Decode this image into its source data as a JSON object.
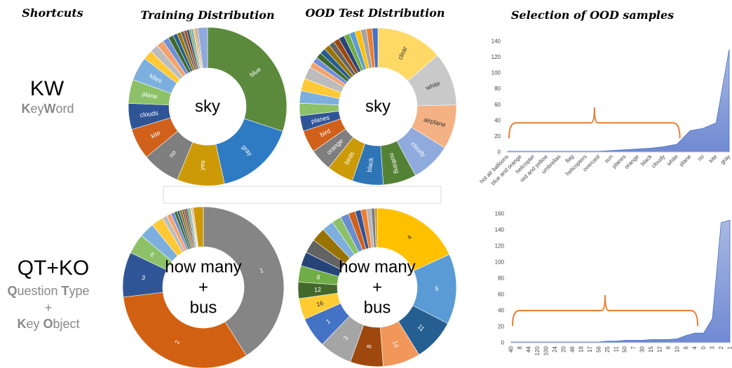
{
  "headers": {
    "shortcuts": "Shortcuts",
    "training": "Training Distribution",
    "ood_test": "OOD Test Distribution",
    "selection": "Selection of OOD samples"
  },
  "rows": [
    {
      "abbr": "KW",
      "full_parts": [
        [
          "K",
          true
        ],
        [
          "ey",
          false
        ],
        [
          "W",
          true
        ],
        [
          "ord",
          false
        ]
      ]
    },
    {
      "abbr": "QT+KO",
      "line1_parts": [
        [
          "Q",
          true
        ],
        [
          "uestion ",
          false
        ],
        [
          "T",
          true
        ],
        [
          "ype",
          false
        ]
      ],
      "plus": "+",
      "line2_parts": [
        [
          "K",
          true
        ],
        [
          "ey ",
          false
        ],
        [
          "O",
          true
        ],
        [
          "bject",
          false
        ]
      ]
    }
  ],
  "chart_data": [
    {
      "type": "pie",
      "subtype": "donut",
      "panel": "Training Distribution",
      "center_label": [
        "sky"
      ],
      "slices": [
        {
          "label": "blue",
          "value": 31,
          "color": "#5B8A3C"
        },
        {
          "label": "gray",
          "value": 17,
          "color": "#2E7BC4"
        },
        {
          "label": "yes",
          "value": 10,
          "color": "#CC9A06"
        },
        {
          "label": "no",
          "value": 8,
          "color": "#7F7F7F"
        },
        {
          "label": "kite",
          "value": 6.5,
          "color": "#D0601A"
        },
        {
          "label": "clouds",
          "value": 5.5,
          "color": "#2F5597"
        },
        {
          "label": "plane",
          "value": 5,
          "color": "#8CC168"
        },
        {
          "label": "kites",
          "value": 5,
          "color": "#7CAFDD"
        },
        {
          "label": "",
          "value": 2,
          "color": "#FFC935"
        },
        {
          "label": "",
          "value": 1.8,
          "color": "#BCBCBC"
        },
        {
          "label": "",
          "value": 1.5,
          "color": "#F4A26B"
        },
        {
          "label": "",
          "value": 1.3,
          "color": "#6F8FD8"
        },
        {
          "label": "",
          "value": 1.1,
          "color": "#3F6A2A"
        },
        {
          "label": "",
          "value": 0.9,
          "color": "#255E91"
        },
        {
          "label": "",
          "value": 0.8,
          "color": "#997300"
        },
        {
          "label": "",
          "value": 0.7,
          "color": "#636363"
        },
        {
          "label": "",
          "value": 0.6,
          "color": "#9E480E"
        },
        {
          "label": "",
          "value": 0.5,
          "color": "#264478"
        },
        {
          "label": "",
          "value": 0.4,
          "color": "#70AD47"
        },
        {
          "label": "",
          "value": 0.4,
          "color": "#5B9BD5"
        },
        {
          "label": "",
          "value": 0.3,
          "color": "#FFC000"
        },
        {
          "label": "",
          "value": 0.3,
          "color": "#A5A5A5"
        },
        {
          "label": "",
          "value": 0.3,
          "color": "#ED7D31"
        },
        {
          "label": "",
          "value": 0.2,
          "color": "#4472C4"
        },
        {
          "label": "",
          "value": 2,
          "color": "#8EA9DB"
        }
      ]
    },
    {
      "type": "pie",
      "subtype": "donut",
      "panel": "OOD Test Distribution",
      "center_label": [
        "sky"
      ],
      "slices": [
        {
          "label": "clear",
          "value": 15,
          "color": "#FFD966"
        },
        {
          "label": "white",
          "value": 12,
          "color": "#C9C9C9"
        },
        {
          "label": "airplane",
          "value": 10,
          "color": "#F4B183"
        },
        {
          "label": "cloudy",
          "value": 9,
          "color": "#8FAADC"
        },
        {
          "label": "nothing",
          "value": 7.5,
          "color": "#548235"
        },
        {
          "label": "black",
          "value": 7,
          "color": "#2E75B6"
        },
        {
          "label": "birds",
          "value": 6,
          "color": "#CC9A06"
        },
        {
          "label": "orange",
          "value": 5,
          "color": "#7F7F7F"
        },
        {
          "label": "bird",
          "value": 5,
          "color": "#D0601A"
        },
        {
          "label": "planes",
          "value": 3.5,
          "color": "#2F5597"
        },
        {
          "label": "",
          "value": 2.8,
          "color": "#8CC168"
        },
        {
          "label": "",
          "value": 2.8,
          "color": "#7CAFDD"
        },
        {
          "label": "",
          "value": 2.8,
          "color": "#FFC935"
        },
        {
          "label": "",
          "value": 2.8,
          "color": "#BCBCBC"
        },
        {
          "label": "",
          "value": 1.3,
          "color": "#F4A26B"
        },
        {
          "label": "",
          "value": 1.3,
          "color": "#6F8FD8"
        },
        {
          "label": "",
          "value": 1.3,
          "color": "#3F6A2A"
        },
        {
          "label": "",
          "value": 1.3,
          "color": "#255E91"
        },
        {
          "label": "",
          "value": 1.3,
          "color": "#997300"
        },
        {
          "label": "",
          "value": 1.3,
          "color": "#636363"
        },
        {
          "label": "",
          "value": 1.3,
          "color": "#9E480E"
        },
        {
          "label": "",
          "value": 1.3,
          "color": "#264478"
        },
        {
          "label": "",
          "value": 1.3,
          "color": "#70AD47"
        },
        {
          "label": "",
          "value": 1.3,
          "color": "#5B9BD5"
        },
        {
          "label": "",
          "value": 1.3,
          "color": "#FFC000"
        },
        {
          "label": "",
          "value": 1.3,
          "color": "#A5A5A5"
        },
        {
          "label": "",
          "value": 1.3,
          "color": "#ED7D31"
        },
        {
          "label": "",
          "value": 1.3,
          "color": "#4472C4"
        }
      ]
    },
    {
      "type": "area",
      "panel": "Selection of OOD samples",
      "categories": [
        "hot air balloons",
        "blue and orange",
        "helicopter",
        "red and yellow",
        "umbrellas",
        "flag",
        "helicopters",
        "overcast",
        "sun",
        "planes",
        "orange",
        "black",
        "cloudy",
        "white",
        "plane",
        "no",
        "kite",
        "gray"
      ],
      "values": [
        1,
        1,
        1,
        1,
        1,
        1,
        1,
        1,
        2,
        3,
        4,
        5,
        7,
        10,
        27,
        30,
        37,
        130
      ],
      "ylim": [
        0,
        140
      ],
      "yticks": [
        0,
        20,
        40,
        60,
        80,
        100,
        120,
        140
      ],
      "color": "#7F96D6",
      "annotation": "bracket spanning hot air balloons to white"
    },
    {
      "type": "pie",
      "subtype": "donut",
      "panel": "Training Distribution",
      "center_label": [
        "how many",
        "+",
        "bus"
      ],
      "slices": [
        {
          "label": "1",
          "value": 41,
          "color": "#858585"
        },
        {
          "label": "2",
          "value": 32,
          "color": "#D26012"
        },
        {
          "label": "3",
          "value": 9,
          "color": "#2F5597"
        },
        {
          "label": "6",
          "value": 4,
          "color": "#8CC168"
        },
        {
          "label": "",
          "value": 3,
          "color": "#7CAFDD"
        },
        {
          "label": "",
          "value": 2.4,
          "color": "#FFC935"
        },
        {
          "label": "",
          "value": 1,
          "color": "#BCBCBC"
        },
        {
          "label": "",
          "value": 0.9,
          "color": "#F4A26B"
        },
        {
          "label": "",
          "value": 0.7,
          "color": "#6F8FD8"
        },
        {
          "label": "",
          "value": 0.6,
          "color": "#3F6A2A"
        },
        {
          "label": "",
          "value": 0.5,
          "color": "#255E91"
        },
        {
          "label": "",
          "value": 0.5,
          "color": "#997300"
        },
        {
          "label": "",
          "value": 0.4,
          "color": "#636363"
        },
        {
          "label": "",
          "value": 0.4,
          "color": "#9E480E"
        },
        {
          "label": "",
          "value": 0.3,
          "color": "#264478"
        },
        {
          "label": "",
          "value": 0.3,
          "color": "#70AD47"
        },
        {
          "label": "",
          "value": 0.3,
          "color": "#5B9BD5"
        },
        {
          "label": "",
          "value": 0.2,
          "color": "#FFC000"
        },
        {
          "label": "",
          "value": 0.2,
          "color": "#A5A5A5"
        },
        {
          "label": "",
          "value": 0.2,
          "color": "#ED7D31"
        },
        {
          "label": "",
          "value": 2,
          "color": "#CC9A06"
        }
      ]
    },
    {
      "type": "pie",
      "subtype": "donut",
      "panel": "OOD Test Distribution",
      "center_label": [
        "how many",
        "+",
        "bus"
      ],
      "slices": [
        {
          "label": "4",
          "value": 19,
          "color": "#FFC000"
        },
        {
          "label": "5",
          "value": 15,
          "color": "#5B9BD5"
        },
        {
          "label": "11",
          "value": 9,
          "color": "#255E91"
        },
        {
          "label": "14",
          "value": 8,
          "color": "#F1975A"
        },
        {
          "label": "8",
          "value": 7,
          "color": "#9E480E"
        },
        {
          "label": "3",
          "value": 7,
          "color": "#A5A5A5"
        },
        {
          "label": "1",
          "value": 6.5,
          "color": "#4472C4"
        },
        {
          "label": "16",
          "value": 4.5,
          "color": "#FFCD33"
        },
        {
          "label": "12",
          "value": 3.5,
          "color": "#43682B"
        },
        {
          "label": "6",
          "value": 3.5,
          "color": "#70AD47"
        },
        {
          "label": "",
          "value": 3,
          "color": "#264478"
        },
        {
          "label": "",
          "value": 3,
          "color": "#636363"
        },
        {
          "label": "",
          "value": 3,
          "color": "#997300"
        },
        {
          "label": "",
          "value": 2.5,
          "color": "#7CAFDD"
        },
        {
          "label": "",
          "value": 2,
          "color": "#8CC168"
        },
        {
          "label": "",
          "value": 1.8,
          "color": "#698ED0"
        },
        {
          "label": "",
          "value": 1.5,
          "color": "#D0601A"
        },
        {
          "label": "",
          "value": 1.2,
          "color": "#2F5597"
        },
        {
          "label": "",
          "value": 1.2,
          "color": "#ED7D31"
        },
        {
          "label": "",
          "value": 1,
          "color": "#B7B7B7"
        },
        {
          "label": "",
          "value": 0.8,
          "color": "#7F7F7F"
        },
        {
          "label": "",
          "value": 0.5,
          "color": "#CC9A06"
        }
      ]
    },
    {
      "type": "area",
      "panel": "Selection of OOD samples",
      "categories": [
        "40",
        "8",
        "44",
        "120",
        "100",
        "24",
        "20",
        "46",
        "18",
        "17",
        "56",
        "25",
        "11",
        "50",
        "7",
        "30",
        "15",
        "12",
        "9",
        "10",
        "6",
        "4",
        "0",
        "3",
        "2",
        "1"
      ],
      "values": [
        1,
        1,
        1,
        1,
        1,
        1,
        1,
        1,
        1,
        1,
        1,
        2,
        2,
        3,
        3,
        3,
        4,
        4,
        4,
        5,
        9,
        12,
        12,
        30,
        149,
        152
      ],
      "ylim": [
        0,
        160
      ],
      "yticks": [
        0,
        20,
        40,
        60,
        80,
        100,
        120,
        140,
        160
      ],
      "color": "#7F96D6",
      "annotation": "bracket spanning 40 to 4"
    }
  ]
}
